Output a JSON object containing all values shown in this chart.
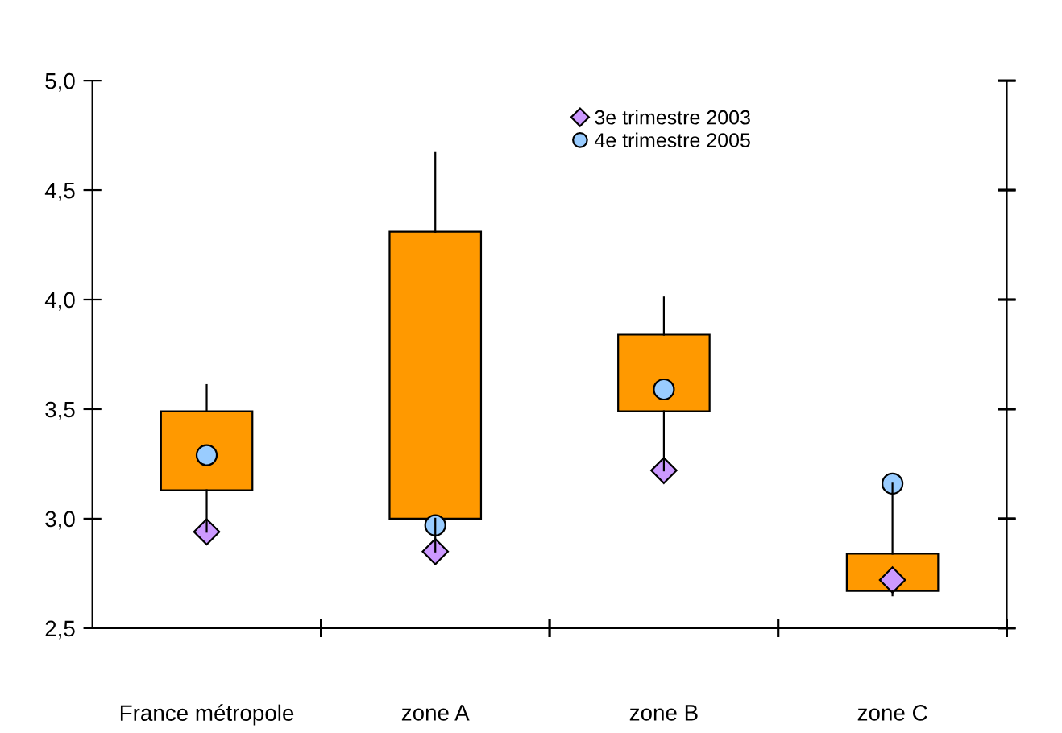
{
  "chart_data": {
    "type": "candlestick",
    "categories": [
      "France métropole",
      "zone A",
      "zone B",
      "zone C"
    ],
    "ohlc": [
      [
        3.13,
        3.61,
        2.94,
        3.49
      ],
      [
        3.0,
        4.67,
        2.85,
        4.31
      ],
      [
        3.49,
        4.01,
        3.22,
        3.84
      ],
      [
        2.67,
        3.16,
        2.65,
        2.84
      ]
    ],
    "color": "#ff9900",
    "series": [
      {
        "type": "scatter",
        "name": "3e trimestre 2003",
        "color": "#cc99ff",
        "marker": "diamond",
        "x": [
          "France métropole",
          "zone A",
          "zone B",
          "zone C"
        ],
        "values": [
          2.94,
          2.85,
          3.22,
          2.72
        ]
      },
      {
        "type": "scatter",
        "name": "4e trimestre 2005",
        "color": "#99ccff",
        "marker": "circle",
        "x": [
          "France métropole",
          "zone A",
          "zone B",
          "zone C"
        ],
        "values": [
          3.29,
          2.97,
          3.59,
          3.16
        ]
      }
    ],
    "ylim": [
      2.5,
      5.0
    ],
    "yticks": [
      {
        "value": 2.5,
        "label": "2,5"
      },
      {
        "value": 3.0,
        "label": "3,0"
      },
      {
        "value": 3.5,
        "label": "3,5"
      },
      {
        "value": 4.0,
        "label": "4,0"
      },
      {
        "value": 4.5,
        "label": "4,5"
      },
      {
        "value": 5.0,
        "label": "5,0"
      }
    ],
    "grid": false,
    "legend": "top right"
  }
}
